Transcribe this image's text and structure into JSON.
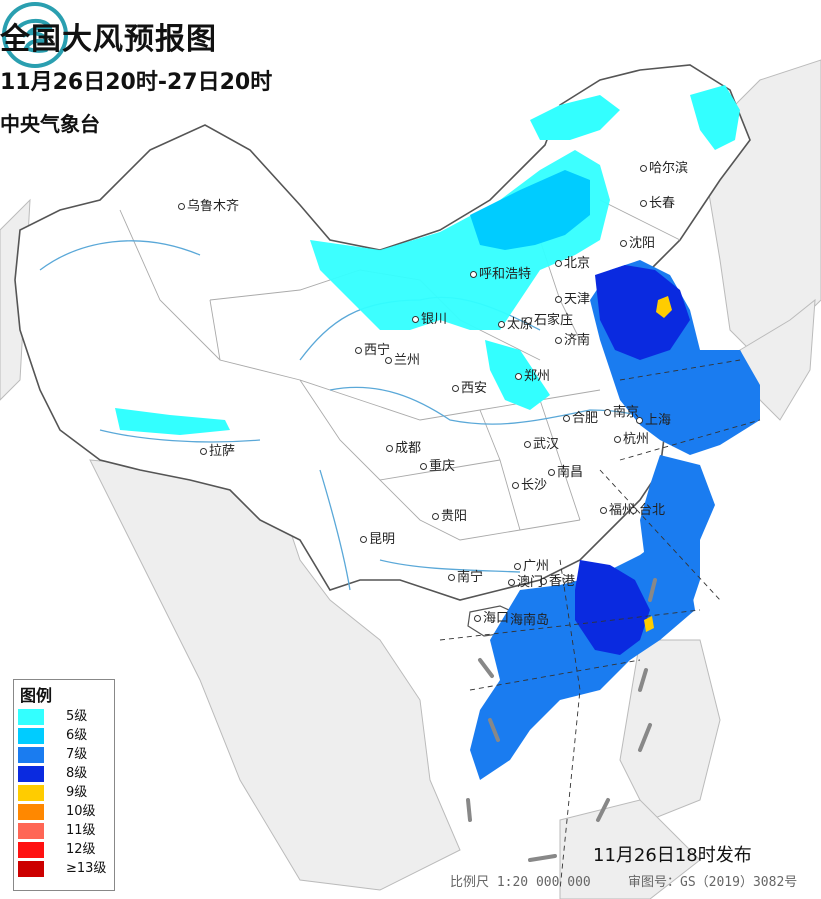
{
  "header": {
    "title": "全国大风预报图",
    "valid_time": "11月26日20时-27日20时",
    "agency": "中央气象台"
  },
  "cities": [
    {
      "name": "乌鲁木齐"
    },
    {
      "name": "哈尔滨"
    },
    {
      "name": "长春"
    },
    {
      "name": "沈阳"
    },
    {
      "name": "呼和浩特"
    },
    {
      "name": "北京"
    },
    {
      "name": "天津"
    },
    {
      "name": "银川"
    },
    {
      "name": "太原"
    },
    {
      "name": "石家庄"
    },
    {
      "name": "济南"
    },
    {
      "name": "西宁"
    },
    {
      "name": "兰州"
    },
    {
      "name": "郑州"
    },
    {
      "name": "西安"
    },
    {
      "name": "合肥"
    },
    {
      "name": "南京"
    },
    {
      "name": "上海"
    },
    {
      "name": "杭州"
    },
    {
      "name": "武汉"
    },
    {
      "name": "成都"
    },
    {
      "name": "重庆"
    },
    {
      "name": "拉萨"
    },
    {
      "name": "南昌"
    },
    {
      "name": "长沙"
    },
    {
      "name": "福州"
    },
    {
      "name": "台北"
    },
    {
      "name": "贵阳"
    },
    {
      "name": "昆明"
    },
    {
      "name": "广州"
    },
    {
      "name": "香港"
    },
    {
      "name": "澳门"
    },
    {
      "name": "南宁"
    },
    {
      "name": "海口"
    },
    {
      "name": "海南岛"
    }
  ],
  "legend": {
    "title": "图例",
    "items": [
      {
        "label": "5级",
        "color": "#33ffff"
      },
      {
        "label": "6级",
        "color": "#00ccff"
      },
      {
        "label": "7级",
        "color": "#1a7cf0"
      },
      {
        "label": "8级",
        "color": "#0a2ae0"
      },
      {
        "label": "9级",
        "color": "#ffcc00"
      },
      {
        "label": "10级",
        "color": "#ff8800"
      },
      {
        "label": "11级",
        "color": "#ff6655"
      },
      {
        "label": "12级",
        "color": "#ff1111"
      },
      {
        "label": "≥13级",
        "color": "#cc0000"
      }
    ]
  },
  "footer": {
    "issued": "11月26日18时发布",
    "scale": "比例尺 1:20 000 000",
    "review": "审图号：GS（2019）3082号"
  }
}
